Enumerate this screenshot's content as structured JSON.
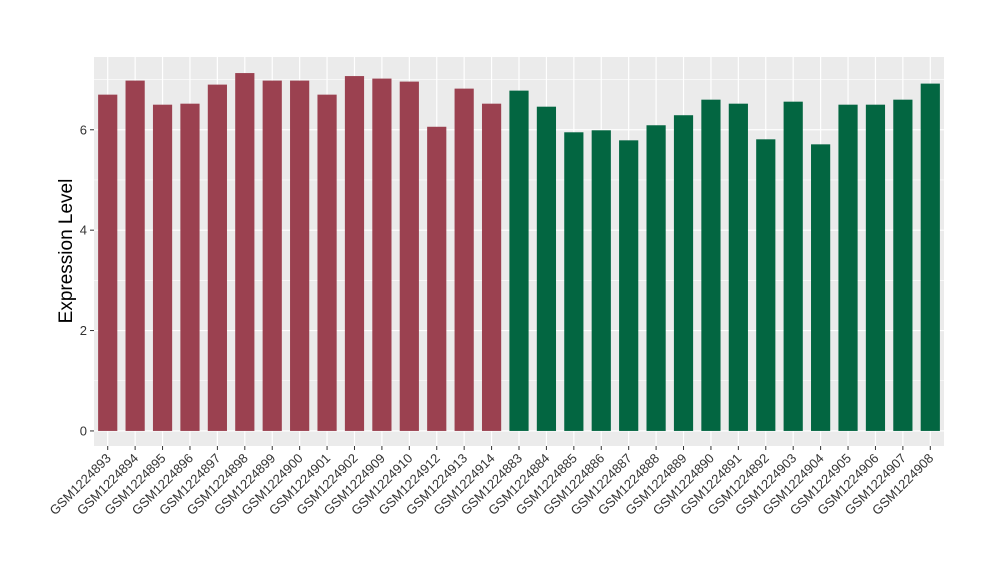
{
  "chart_data": {
    "type": "bar",
    "title": "",
    "xlabel": "",
    "ylabel": "Expression Level",
    "ylim": [
      -0.3,
      7.45
    ],
    "yticks": [
      0,
      2,
      4,
      6
    ],
    "grid": true,
    "legend": "none",
    "panel_background": "#ebebeb",
    "grid_color": "#ffffff",
    "categories": [
      "GSM1224893",
      "GSM1224894",
      "GSM1224895",
      "GSM1224896",
      "GSM1224897",
      "GSM1224898",
      "GSM1224899",
      "GSM1224900",
      "GSM1224901",
      "GSM1224902",
      "GSM1224909",
      "GSM1224910",
      "GSM1224912",
      "GSM1224913",
      "GSM1224914",
      "GSM1224883",
      "GSM1224884",
      "GSM1224885",
      "GSM1224886",
      "GSM1224887",
      "GSM1224888",
      "GSM1224889",
      "GSM1224890",
      "GSM1224891",
      "GSM1224892",
      "GSM1224903",
      "GSM1224904",
      "GSM1224905",
      "GSM1224906",
      "GSM1224907",
      "GSM1224908"
    ],
    "values": [
      6.7,
      6.98,
      6.5,
      6.52,
      6.9,
      7.13,
      6.98,
      6.98,
      6.7,
      7.07,
      7.02,
      6.96,
      6.06,
      6.82,
      6.52,
      6.78,
      6.46,
      5.95,
      5.99,
      5.79,
      6.09,
      6.29,
      6.6,
      6.52,
      5.81,
      6.56,
      5.71,
      6.5,
      6.5,
      6.6,
      6.92
    ],
    "groups": [
      "g1",
      "g1",
      "g1",
      "g1",
      "g1",
      "g1",
      "g1",
      "g1",
      "g1",
      "g1",
      "g1",
      "g1",
      "g1",
      "g1",
      "g1",
      "g2",
      "g2",
      "g2",
      "g2",
      "g2",
      "g2",
      "g2",
      "g2",
      "g2",
      "g2",
      "g2",
      "g2",
      "g2",
      "g2",
      "g2",
      "g2"
    ],
    "group_colors": {
      "g1": "#9b4150",
      "g2": "#036641"
    }
  }
}
